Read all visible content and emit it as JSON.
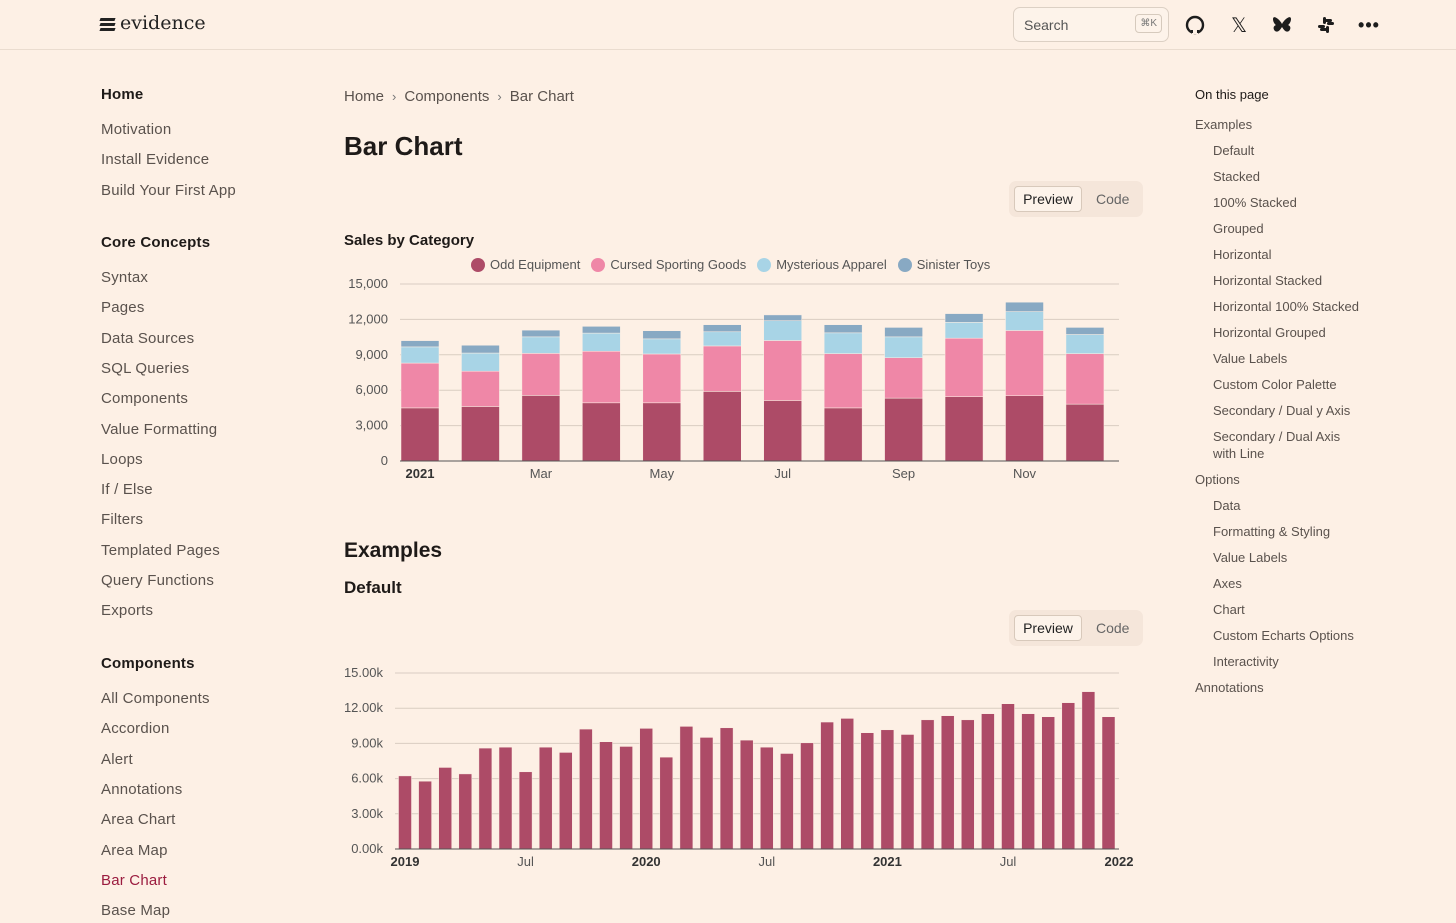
{
  "header": {
    "logo": "evidence",
    "search_placeholder": "Search",
    "search_shortcut": "⌘K",
    "icons": [
      "github-icon",
      "x-icon",
      "bluesky-icon",
      "slack-icon",
      "more-icon"
    ]
  },
  "sidebar": {
    "sections": [
      {
        "title": "Home",
        "items": [
          "Motivation",
          "Install Evidence",
          "Build Your First App"
        ]
      },
      {
        "title": "Core Concepts",
        "items": [
          "Syntax",
          "Pages",
          "Data Sources",
          "SQL Queries",
          "Components",
          "Value Formatting",
          "Loops",
          "If / Else",
          "Filters",
          "Templated Pages",
          "Query Functions",
          "Exports"
        ]
      },
      {
        "title": "Components",
        "items": [
          "All Components",
          "Accordion",
          "Alert",
          "Annotations",
          "Area Chart",
          "Area Map",
          "Bar Chart",
          "Base Map"
        ]
      }
    ],
    "active": "Bar Chart"
  },
  "breadcrumb": [
    "Home",
    "Components",
    "Bar Chart"
  ],
  "page_title": "Bar Chart",
  "toggle": {
    "preview": "Preview",
    "code": "Code"
  },
  "examples_heading": "Examples",
  "default_heading": "Default",
  "colors": {
    "accent": "#9b1c3f",
    "odd": "#ad4b67",
    "cursed": "#ef87a7",
    "apparel": "#a8d4e6",
    "toys": "#88a9c3",
    "bar": "#ad4b67"
  },
  "toc": {
    "title": "On this page",
    "items": [
      {
        "label": "Examples",
        "level": 0
      },
      {
        "label": "Default",
        "level": 1
      },
      {
        "label": "Stacked",
        "level": 1
      },
      {
        "label": "100% Stacked",
        "level": 1
      },
      {
        "label": "Grouped",
        "level": 1
      },
      {
        "label": "Horizontal",
        "level": 1
      },
      {
        "label": "Horizontal Stacked",
        "level": 1
      },
      {
        "label": "Horizontal 100% Stacked",
        "level": 1
      },
      {
        "label": "Horizontal Grouped",
        "level": 1
      },
      {
        "label": "Value Labels",
        "level": 1
      },
      {
        "label": "Custom Color Palette",
        "level": 1
      },
      {
        "label": "Secondary / Dual y Axis",
        "level": 1
      },
      {
        "label": "Secondary / Dual Axis with Line",
        "level": 1
      },
      {
        "label": "Options",
        "level": 0
      },
      {
        "label": "Data",
        "level": 1
      },
      {
        "label": "Formatting & Styling",
        "level": 1
      },
      {
        "label": "Value Labels",
        "level": 1
      },
      {
        "label": "Axes",
        "level": 1
      },
      {
        "label": "Chart",
        "level": 1
      },
      {
        "label": "Custom Echarts Options",
        "level": 1
      },
      {
        "label": "Interactivity",
        "level": 1
      },
      {
        "label": "Annotations",
        "level": 0
      }
    ]
  },
  "chart_data": [
    {
      "type": "bar",
      "stacked": true,
      "title": "Sales by Category",
      "legend": "top",
      "categories": [
        "2021-01",
        "2021-02",
        "2021-03",
        "2021-04",
        "2021-05",
        "2021-06",
        "2021-07",
        "2021-08",
        "2021-09",
        "2021-10",
        "2021-11",
        "2021-12"
      ],
      "xtick_labels": [
        {
          "index": 0,
          "label": "2021",
          "bold": true
        },
        {
          "index": 2,
          "label": "Mar"
        },
        {
          "index": 4,
          "label": "May"
        },
        {
          "index": 6,
          "label": "Jul"
        },
        {
          "index": 8,
          "label": "Sep"
        },
        {
          "index": 10,
          "label": "Nov"
        }
      ],
      "yticks": [
        "0",
        "3,000",
        "6,000",
        "9,000",
        "12,000",
        "15,000"
      ],
      "ylim": [
        0,
        15000
      ],
      "series": [
        {
          "name": "Odd Equipment",
          "values": [
            4500,
            4620,
            5560,
            4930,
            4930,
            5900,
            5130,
            4500,
            5330,
            5450,
            5530,
            4820
          ]
        },
        {
          "name": "Cursed Sporting Goods",
          "values": [
            3800,
            2990,
            3560,
            4370,
            4140,
            3850,
            5080,
            4600,
            3420,
            4960,
            5530,
            4280
          ]
        },
        {
          "name": "Mysterious Apparel",
          "values": [
            1370,
            1540,
            1400,
            1540,
            1280,
            1200,
            1680,
            1760,
            1770,
            1340,
            1600,
            1620
          ]
        },
        {
          "name": "Sinister Toys",
          "values": [
            530,
            660,
            570,
            570,
            690,
            600,
            490,
            690,
            800,
            740,
            800,
            600
          ]
        }
      ]
    },
    {
      "type": "bar",
      "title": "",
      "legend": "none",
      "x_range": [
        "2019-01",
        "2021-12"
      ],
      "xtick_labels": [
        {
          "index": 0,
          "label": "2019",
          "bold": true
        },
        {
          "index": 6,
          "label": "Jul"
        },
        {
          "index": 12,
          "label": "2020",
          "bold": true
        },
        {
          "index": 18,
          "label": "Jul"
        },
        {
          "index": 24,
          "label": "2021",
          "bold": true
        },
        {
          "index": 30,
          "label": "Jul"
        },
        {
          "index": 36,
          "label": "2022",
          "bold": true
        }
      ],
      "yticks": [
        "0.00k",
        "3.00k",
        "6.00k",
        "9.00k",
        "12.00k",
        "15.00k"
      ],
      "ylim": [
        0,
        15000
      ],
      "values": [
        6230,
        5780,
        6950,
        6400,
        8600,
        8680,
        6580,
        8680,
        8230,
        10220,
        9140,
        8740,
        10280,
        7830,
        10450,
        9510,
        10330,
        9280,
        8680,
        8140,
        9050,
        10820,
        11130,
        9910,
        10160,
        9760,
        11010,
        11360,
        11010,
        11530,
        12380,
        11530,
        11270,
        12470,
        13410,
        11270
      ]
    }
  ]
}
